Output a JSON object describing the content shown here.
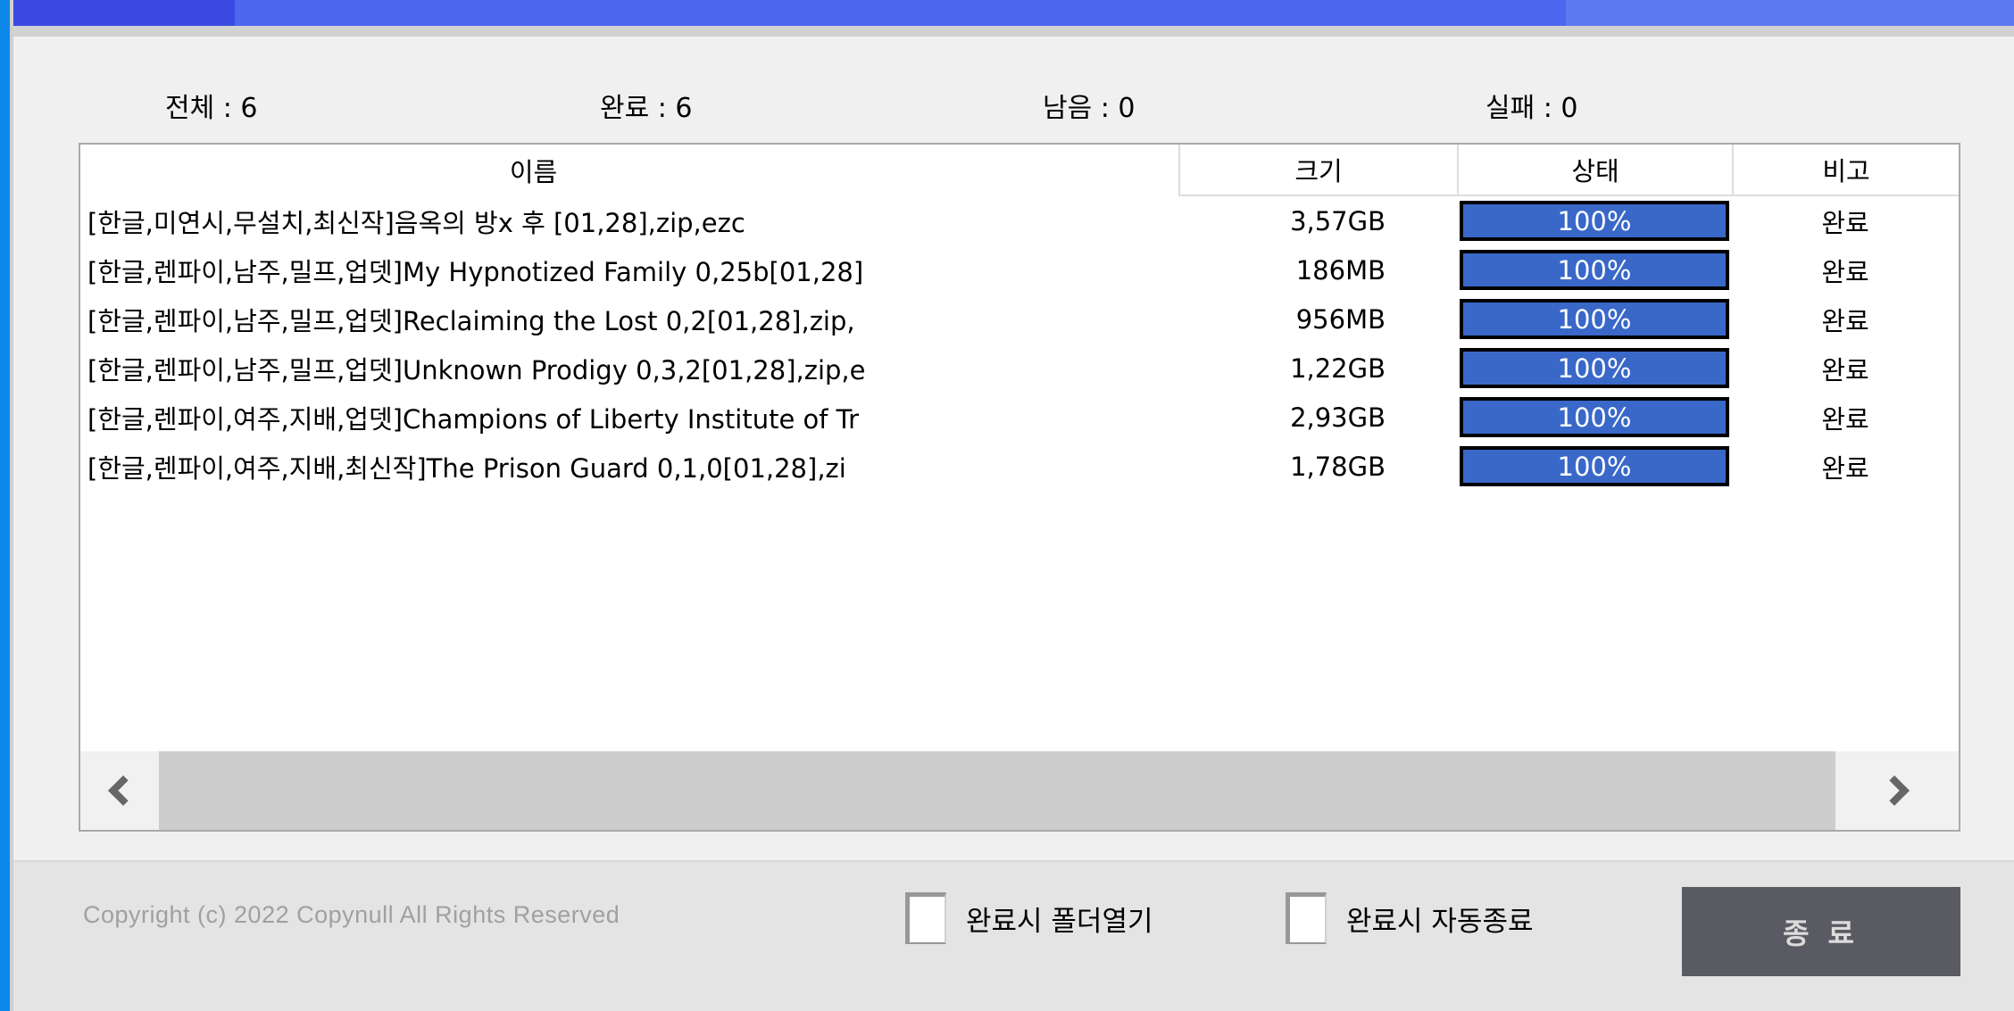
{
  "stats": [
    "전체 : 6",
    "완료 : 6",
    "남음 : 0",
    "실패 : 0"
  ],
  "table": {
    "headers": [
      "이름",
      "크기",
      "상태",
      "비고"
    ],
    "rows": [
      {
        "name": "[한글,미연시,무설치,최신작]음옥의 방x 후 [01,28],zip,ezc",
        "size": "3,57GB",
        "percent": 100,
        "progress": "100%",
        "note": "완료"
      },
      {
        "name": "[한글,렌파이,남주,밀프,업뎃]My Hypnotized Family 0,25b[01,28]",
        "size": "186MB",
        "percent": 100,
        "progress": "100%",
        "note": "완료"
      },
      {
        "name": "[한글,렌파이,남주,밀프,업뎃]Reclaiming the Lost 0,2[01,28],zip,",
        "size": "956MB",
        "percent": 100,
        "progress": "100%",
        "note": "완료"
      },
      {
        "name": "[한글,렌파이,남주,밀프,업뎃]Unknown Prodigy 0,3,2[01,28],zip,e",
        "size": "1,22GB",
        "percent": 100,
        "progress": "100%",
        "note": "완료"
      },
      {
        "name": "[한글,렌파이,여주,지배,업뎃]Champions of Liberty Institute of Tr",
        "size": "2,93GB",
        "percent": 100,
        "progress": "100%",
        "note": "완료"
      },
      {
        "name": "[한글,렌파이,여주,지배,최신작]The Prison Guard 0,1,0[01,28],zi",
        "size": "1,78GB",
        "percent": 100,
        "progress": "100%",
        "note": "완료"
      }
    ]
  },
  "footer": {
    "copyright": "Copyright (c) 2022 Copynull All Rights Reserved",
    "checkbox_open_folder": "완료시 폴더열기",
    "checkbox_auto_exit": "완료시 자동종료",
    "exit_button": "종 료"
  },
  "colors": {
    "titlebar_segment_dark": "#3a4ae1",
    "titlebar_segment_mid": "#4a67ee",
    "titlebar_segment_light": "#5d7bf0",
    "left_edge_strip": "#0c87ea",
    "progress_fill": "#3968c8",
    "progress_border": "#000000",
    "exit_button_bg": "#5a5a63",
    "scroll_thumb": "#cdcdcd"
  }
}
